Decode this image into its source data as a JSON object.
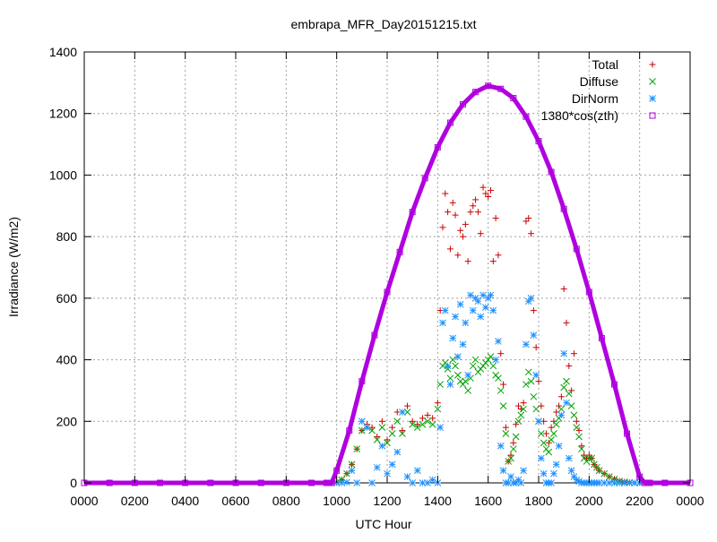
{
  "chart_data": {
    "type": "scatter",
    "title": "embrapa_MFR_Day20151215.txt",
    "xlabel": "UTC Hour",
    "ylabel": "Irradiance (W/m2)",
    "xlim": [
      0,
      2400
    ],
    "ylim": [
      0,
      1400
    ],
    "grid": true,
    "legend_position": "top-right",
    "x_ticks": [
      "0000",
      "0200",
      "0400",
      "0600",
      "0800",
      "1000",
      "1200",
      "1400",
      "1600",
      "1800",
      "2000",
      "2200",
      "0000"
    ],
    "y_ticks": [
      0,
      200,
      400,
      600,
      800,
      1000,
      1200,
      1400
    ],
    "series": [
      {
        "name": "Total",
        "marker": "plus",
        "color": "#cc0000",
        "x": [
          1000,
          1020,
          1040,
          1060,
          1080,
          1100,
          1120,
          1140,
          1160,
          1180,
          1200,
          1220,
          1240,
          1260,
          1280,
          1300,
          1320,
          1340,
          1360,
          1380,
          1400,
          1410,
          1420,
          1430,
          1440,
          1450,
          1460,
          1470,
          1480,
          1490,
          1500,
          1510,
          1520,
          1530,
          1540,
          1550,
          1560,
          1570,
          1580,
          1590,
          1600,
          1610,
          1620,
          1630,
          1640,
          1650,
          1660,
          1670,
          1680,
          1690,
          1700,
          1710,
          1720,
          1730,
          1740,
          1750,
          1760,
          1770,
          1780,
          1790,
          1800,
          1810,
          1820,
          1830,
          1840,
          1850,
          1860,
          1870,
          1880,
          1890,
          1900,
          1910,
          1920,
          1930,
          1940,
          1950,
          1960,
          1970,
          1980,
          1990,
          2000,
          2010,
          2020,
          2030,
          2040,
          2060,
          2080,
          2100,
          2120,
          2140,
          2160,
          2180,
          2200
        ],
        "y": [
          2,
          10,
          30,
          60,
          110,
          170,
          190,
          180,
          150,
          200,
          140,
          180,
          230,
          170,
          250,
          200,
          190,
          210,
          220,
          210,
          260,
          560,
          830,
          940,
          880,
          760,
          910,
          870,
          740,
          820,
          800,
          840,
          720,
          880,
          900,
          920,
          880,
          810,
          960,
          940,
          930,
          950,
          720,
          860,
          740,
          420,
          320,
          180,
          70,
          90,
          130,
          190,
          250,
          240,
          260,
          850,
          860,
          810,
          560,
          440,
          330,
          250,
          200,
          160,
          130,
          180,
          200,
          230,
          250,
          280,
          630,
          520,
          380,
          300,
          420,
          200,
          170,
          120,
          90,
          80,
          90,
          80,
          60,
          50,
          40,
          30,
          20,
          12,
          6,
          3,
          1,
          0,
          0
        ]
      },
      {
        "name": "Diffuse",
        "marker": "cross",
        "color": "#00a000",
        "x": [
          1000,
          1020,
          1040,
          1060,
          1080,
          1100,
          1120,
          1140,
          1160,
          1180,
          1200,
          1220,
          1240,
          1260,
          1280,
          1300,
          1320,
          1340,
          1360,
          1380,
          1400,
          1410,
          1420,
          1430,
          1440,
          1450,
          1460,
          1470,
          1480,
          1490,
          1500,
          1510,
          1520,
          1530,
          1540,
          1550,
          1560,
          1570,
          1580,
          1590,
          1600,
          1610,
          1620,
          1630,
          1640,
          1650,
          1660,
          1670,
          1680,
          1690,
          1700,
          1710,
          1720,
          1730,
          1740,
          1750,
          1760,
          1770,
          1780,
          1790,
          1800,
          1810,
          1820,
          1830,
          1840,
          1850,
          1860,
          1870,
          1880,
          1890,
          1900,
          1910,
          1920,
          1930,
          1940,
          1950,
          1960,
          1970,
          1980,
          1990,
          2000,
          2010,
          2020,
          2030,
          2040,
          2060,
          2080,
          2100,
          2120,
          2140,
          2160,
          2180,
          2200
        ],
        "y": [
          2,
          10,
          30,
          60,
          110,
          170,
          180,
          170,
          140,
          180,
          130,
          160,
          200,
          160,
          230,
          190,
          180,
          190,
          200,
          190,
          240,
          320,
          380,
          390,
          370,
          340,
          400,
          380,
          350,
          330,
          320,
          330,
          300,
          340,
          380,
          400,
          360,
          370,
          380,
          390,
          400,
          410,
          380,
          350,
          340,
          300,
          250,
          160,
          70,
          80,
          110,
          150,
          200,
          220,
          240,
          320,
          360,
          330,
          280,
          240,
          200,
          160,
          130,
          110,
          100,
          140,
          160,
          190,
          210,
          240,
          310,
          330,
          290,
          250,
          220,
          180,
          150,
          110,
          80,
          70,
          80,
          80,
          60,
          50,
          40,
          30,
          20,
          12,
          6,
          3,
          1,
          0,
          0
        ]
      },
      {
        "name": "DirNorm",
        "marker": "star",
        "color": "#1e90ff",
        "x": [
          1000,
          1020,
          1040,
          1060,
          1080,
          1100,
          1120,
          1140,
          1160,
          1180,
          1200,
          1220,
          1240,
          1260,
          1280,
          1300,
          1320,
          1340,
          1360,
          1380,
          1400,
          1410,
          1420,
          1430,
          1440,
          1450,
          1460,
          1470,
          1480,
          1490,
          1500,
          1510,
          1520,
          1530,
          1540,
          1550,
          1560,
          1570,
          1580,
          1590,
          1600,
          1610,
          1620,
          1630,
          1640,
          1650,
          1660,
          1670,
          1680,
          1690,
          1700,
          1710,
          1720,
          1730,
          1740,
          1750,
          1760,
          1770,
          1780,
          1790,
          1800,
          1810,
          1820,
          1830,
          1840,
          1850,
          1860,
          1870,
          1880,
          1890,
          1900,
          1910,
          1920,
          1930,
          1940,
          1950,
          1960,
          1970,
          1980,
          1990,
          2000,
          2010,
          2020,
          2030,
          2040,
          2060,
          2080,
          2100,
          2120,
          2140,
          2160,
          2180,
          2200
        ],
        "y": [
          0,
          0,
          2,
          40,
          0,
          200,
          180,
          0,
          50,
          120,
          30,
          60,
          100,
          230,
          20,
          0,
          40,
          0,
          0,
          10,
          0,
          180,
          520,
          560,
          380,
          320,
          470,
          540,
          410,
          580,
          450,
          520,
          350,
          610,
          560,
          600,
          590,
          540,
          610,
          570,
          600,
          610,
          560,
          400,
          460,
          120,
          40,
          0,
          0,
          20,
          0,
          0,
          10,
          0,
          40,
          450,
          590,
          600,
          480,
          350,
          200,
          80,
          30,
          0,
          0,
          0,
          30,
          60,
          120,
          220,
          420,
          260,
          80,
          40,
          20,
          10,
          5,
          0,
          0,
          0,
          0,
          0,
          0,
          0,
          0,
          0,
          0,
          0,
          0,
          0,
          0,
          0,
          0
        ]
      },
      {
        "name": "1380*cos(zth)",
        "marker": "square",
        "color": "#b000e0",
        "x": [
          0,
          100,
          200,
          300,
          400,
          500,
          600,
          700,
          800,
          900,
          960,
          980,
          1000,
          1050,
          1100,
          1150,
          1200,
          1250,
          1300,
          1350,
          1400,
          1450,
          1500,
          1550,
          1600,
          1650,
          1700,
          1750,
          1800,
          1850,
          1900,
          1950,
          2000,
          2050,
          2100,
          2150,
          2200,
          2220,
          2240,
          2300,
          2400
        ],
        "y": [
          0,
          0,
          0,
          0,
          0,
          0,
          0,
          0,
          0,
          0,
          0,
          0,
          40,
          170,
          330,
          480,
          620,
          750,
          880,
          990,
          1090,
          1170,
          1230,
          1270,
          1290,
          1280,
          1250,
          1190,
          1110,
          1010,
          890,
          760,
          620,
          470,
          320,
          160,
          20,
          0,
          0,
          0,
          0
        ]
      }
    ]
  }
}
